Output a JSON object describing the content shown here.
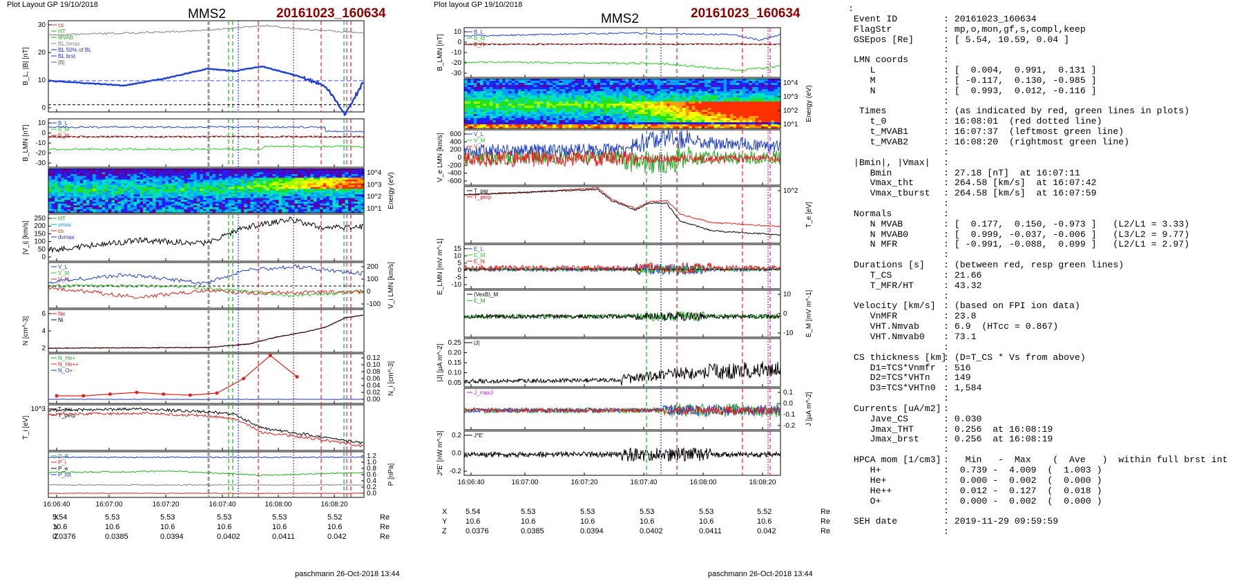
{
  "left_panel": {
    "plot_layout": "Plot Layout GP 19/10/2018",
    "spacecraft": "MMS2",
    "event": "20161023_160634",
    "footer": "paschmann 26-Oct-2018 13:44",
    "time_ticks": [
      "16:06:40",
      "16:07:00",
      "16:07:20",
      "16:07:40",
      "16:08:00",
      "16:08:20"
    ],
    "coords": {
      "row_labels": [
        "X",
        "Y",
        "Z"
      ],
      "unit": "Re",
      "x": [
        "5.54",
        "5.53",
        "5.53",
        "5.53",
        "5.53",
        "5.52"
      ],
      "y": [
        "10.6",
        "10.6",
        "10.6",
        "10.6",
        "10.6",
        "10.6"
      ],
      "z": [
        "0.0376",
        "0.0385",
        "0.0394",
        "0.0402",
        "0.0411",
        "0.042"
      ]
    },
    "panels": {
      "b": {
        "ylabel": "B_L, |B| [nT]",
        "ticks": [
          "30",
          "20",
          "10",
          "0"
        ],
        "legend": [
          "cs",
          "HT",
          "MVAB",
          "BL,hmax",
          "BL 50% of BL",
          "BL brst",
          "|B|"
        ]
      },
      "blmn": {
        "ylabel": "B_LMN [nT]",
        "ticks": [
          "10",
          "0",
          "-10",
          "-20",
          "-30"
        ],
        "legend": [
          "B_L",
          "B_M",
          "B_N"
        ]
      },
      "ispec": {
        "ylabel": "Energy (eV)",
        "ticks": [
          "10^4",
          "10^3",
          "10^2",
          "10^1"
        ]
      },
      "vi": {
        "ylabel": "|V_i| [km/s]",
        "ticks": [
          "250",
          "200",
          "150",
          "100",
          "50",
          "0"
        ],
        "legend": [
          "HT",
          "vmax",
          "cs",
          "dvmax"
        ]
      },
      "vlmn": {
        "ylabel": "V_i LMN [km/s]",
        "ticks": [
          "200",
          "100",
          "0",
          "-100"
        ],
        "legend": [
          "V_L",
          "V_M",
          "V_N"
        ]
      },
      "n": {
        "ylabel": "N [cm^-3]",
        "ticks": [
          "6",
          "4",
          "2"
        ],
        "legend": [
          "Ne",
          "Ni"
        ]
      },
      "ni": {
        "ylabel": "N_i [cm^-3]",
        "ticks": [
          "0.12",
          "0.10",
          "0.08",
          "0.06",
          "0.04",
          "0.02",
          "0.00"
        ],
        "legend": [
          "N_He+",
          "N_He++",
          "N_O+"
        ]
      },
      "ti": {
        "ylabel": "T_i [eV]",
        "ticks": [
          "10^3"
        ],
        "legend": [
          "T_par",
          "T_perp"
        ]
      },
      "p": {
        "ylabel": "P [nPa]",
        "ticks": [
          "1.2",
          "1.0",
          "0.8",
          "0.6",
          "0.4",
          "0.2",
          "0.0"
        ],
        "legend": [
          "P_B",
          "P_i",
          "P_e",
          "P_tot"
        ]
      }
    }
  },
  "middle_panel": {
    "plot_layout": "Plot layout GP 19/10/2018",
    "spacecraft": "MMS2",
    "event": "20161023_160634",
    "footer": "paschmann 26-Oct-2018 13:44",
    "time_ticks": [
      "16:06:40",
      "16:07:00",
      "16:07:20",
      "16:07:40",
      "16:08:00",
      "16:08:20"
    ],
    "coords": {
      "row_labels": [
        "X",
        "Y",
        "Z"
      ],
      "unit": "Re",
      "x": [
        "5.54",
        "5.53",
        "5.53",
        "5.53",
        "5.53",
        "5.52"
      ],
      "y": [
        "10.6",
        "10.6",
        "10.6",
        "10.6",
        "10.6",
        "10.6"
      ],
      "z": [
        "0.0376",
        "0.0385",
        "0.0394",
        "0.0402",
        "0.0411",
        "0.042"
      ]
    },
    "panels": {
      "blmn": {
        "ylabel": "B_LMN [nT]",
        "ticks": [
          "10",
          "0",
          "-10",
          "-20",
          "-30"
        ],
        "legend": [
          "B_L",
          "B_M",
          "B_N"
        ]
      },
      "espec": {
        "ylabel": "Energy (eV)",
        "ticks": [
          "10^4",
          "10^3",
          "10^2",
          "10^1"
        ]
      },
      "ve": {
        "ylabel": "V_e LMN [km/s]",
        "ticks": [
          "600",
          "400",
          "200",
          "0",
          "-200",
          "-400",
          "-600"
        ],
        "legend": [
          "V_L",
          "V_M",
          "V_N"
        ]
      },
      "te": {
        "ylabel": "T_e [eV]",
        "ticks": [
          "10^2"
        ],
        "legend": [
          "T_par",
          "T_perp"
        ]
      },
      "elmn": {
        "ylabel": "E_LMN [mV m^-1]",
        "ticks": [
          "15",
          "10",
          "5",
          "0",
          "-5",
          "-10"
        ],
        "legend": [
          "E_L",
          "E_M",
          "E_N"
        ]
      },
      "em": {
        "ylabel": "E_M [mV m^-1]",
        "ticks": [
          "10",
          "0",
          "-10"
        ],
        "legend": [
          "(VexB)_M",
          "E_M"
        ]
      },
      "jmag": {
        "ylabel": "|J| [µA m^-2]",
        "ticks": [
          "0.25",
          "0.20",
          "0.15",
          "0.10",
          "0.05"
        ],
        "legend": [
          "|J|"
        ]
      },
      "jlmn": {
        "ylabel": "J [µA m^-2]",
        "ticks": [
          "0.1",
          "0.0",
          "-0.1",
          "-0.2"
        ],
        "legend": [
          "J_maxJ"
        ]
      },
      "je": {
        "ylabel": "J*E' [nW m^-3]",
        "ticks": [
          "0.2",
          "0.0",
          "-0.2"
        ],
        "legend": [
          "J*E'"
        ]
      }
    }
  },
  "info": {
    "lines": [
      [
        "Event ID",
        ": 20161023_160634"
      ],
      [
        "FlagStr",
        ": mp,o,mon,gf,s,compl,keep"
      ],
      [
        "GSEpos [Re]",
        ": [ 5.54, 10.59, 0.04 ]"
      ],
      [
        "",
        ":"
      ],
      [
        "LMN coords",
        ":"
      ],
      [
        "   L",
        ": [  0.004,  0.991,  0.131 ]"
      ],
      [
        "   M",
        ": [ -0.117,  0.130, -0.985 ]"
      ],
      [
        "   N",
        ": [  0.993,  0.012, -0.116 ]"
      ],
      [
        "",
        ":"
      ],
      [
        " Times",
        ": (as indicated by red, green lines in plots)"
      ],
      [
        "   t_0",
        ": 16:08:01  (red dotted line)"
      ],
      [
        "   t_MVAB1",
        ": 16:07:37  (leftmost green line)"
      ],
      [
        "   t_MVAB2",
        ": 16:08:20  (rightmost green line)"
      ],
      [
        "",
        ":"
      ],
      [
        "|Bmin|, |Vmax|",
        ":"
      ],
      [
        "   Bmin",
        ": 27.18 [nT]  at 16:07:11"
      ],
      [
        "   Vmax_tht",
        ": 264.58 [km/s]  at 16:07:42"
      ],
      [
        "   Vmax_tburst",
        ": 264.58 [km/s]  at 16:07:59"
      ],
      [
        "",
        ":"
      ],
      [
        "Normals",
        ":"
      ],
      [
        "   N MVAB",
        ": [  0.177,  0.150, -0.973 ]   (L2/L1 = 3.33)"
      ],
      [
        "   N MVAB0",
        ": [  0.999, -0.037, -0.006 ]   (L3/L2 = 9.77)"
      ],
      [
        "   N MFR",
        ": [ -0.991, -0.088,  0.099 ]   (L2/L1 = 2.97)"
      ],
      [
        "",
        ":"
      ],
      [
        "Durations [s]",
        ": (between red, resp green lines)"
      ],
      [
        "   T_CS",
        ": 21.66"
      ],
      [
        "   T_MFR/HT",
        ": 43.32"
      ],
      [
        "",
        ":"
      ],
      [
        "Velocity [km/s]",
        ": (based on FPI ion data)"
      ],
      [
        "   VnMFR",
        ": 23.8"
      ],
      [
        "   VHT.Nmvab",
        ": 6.9  (HTcc = 0.867)"
      ],
      [
        "   VHT.Nmvab0",
        ": 73.1"
      ],
      [
        "",
        ":"
      ],
      [
        "CS thickness [km]",
        ": (D=T_CS * Vs from above)"
      ],
      [
        "   D1=TCS*Vnmfr",
        ": 516"
      ],
      [
        "   D2=TCS*VHTn",
        ": 149"
      ],
      [
        "   D3=TCS*VHTn0",
        ": 1,584"
      ],
      [
        "",
        ":"
      ],
      [
        "Currents [uA/m2]",
        ":"
      ],
      [
        "   Jave_CS",
        ": 0.030"
      ],
      [
        "   Jmax_THT",
        ": 0.256  at 16:08:19"
      ],
      [
        "   Jmax_brst",
        ": 0.256  at 16:08:19"
      ],
      [
        "",
        ":"
      ],
      [
        "HPCA mom [1/cm3]",
        ":   Min   -  Max    (  Ave   )  within full brst int"
      ],
      [
        "   H+",
        ":  0.739 -  4.009  (  1.003 )"
      ],
      [
        "   He+",
        ":  0.000 -  0.002  (  0.000 )"
      ],
      [
        "   He++",
        ":  0.012 -  0.127  (  0.018 )"
      ],
      [
        "   O+",
        ":  0.000 -  0.002  (  0.000 )"
      ],
      [
        "",
        ":"
      ],
      [
        "SEH date",
        ": 2019-11-29 09:59:59"
      ],
      [
        "",
        ":"
      ]
    ]
  },
  "chart_data": [
    {
      "type": "line",
      "title": "MMS2 20161023_160634",
      "panel": "B_L, |B|",
      "x_unit": "UT",
      "x": [
        "16:06:40",
        "16:06:50",
        "16:07:00",
        "16:07:10",
        "16:07:20",
        "16:07:30",
        "16:07:40",
        "16:07:50",
        "16:08:00",
        "16:08:10",
        "16:08:20"
      ],
      "series": [
        {
          "name": "|B|",
          "values": [
            28,
            29,
            30,
            31,
            31,
            30,
            32,
            33,
            31,
            29,
            28
          ]
        },
        {
          "name": "B_L",
          "values": [
            10,
            9,
            8,
            9,
            12,
            15,
            14,
            16,
            13,
            9,
            -4
          ]
        }
      ],
      "ylim": [
        -3,
        35
      ]
    },
    {
      "type": "line",
      "panel": "N",
      "x": [
        "16:06:40",
        "16:07:00",
        "16:07:20",
        "16:07:40",
        "16:07:50",
        "16:08:00",
        "16:08:10",
        "16:08:20"
      ],
      "series": [
        {
          "name": "Ne",
          "values": [
            0.3,
            0.3,
            0.4,
            0.5,
            1.2,
            2.5,
            3.5,
            5.8
          ]
        },
        {
          "name": "Ni",
          "values": [
            0.3,
            0.3,
            0.4,
            0.5,
            1.2,
            2.5,
            3.4,
            5.7
          ]
        }
      ],
      "ylim": [
        0,
        6.5
      ]
    },
    {
      "type": "line",
      "panel": "N_i",
      "x": [
        "16:06:40",
        "16:06:50",
        "16:07:00",
        "16:07:10",
        "16:07:20",
        "16:07:30",
        "16:07:40",
        "16:07:50",
        "16:08:00",
        "16:08:10"
      ],
      "series": [
        {
          "name": "N He++",
          "values": [
            0.01,
            0.01,
            0.015,
            0.02,
            0.015,
            0.012,
            0.018,
            0.06,
            0.127,
            0.065
          ]
        },
        {
          "name": "N He+",
          "values": [
            0,
            0,
            0,
            0,
            0,
            0,
            0,
            0,
            0,
            0
          ]
        },
        {
          "name": "N O+",
          "values": [
            0,
            0,
            0,
            0,
            0,
            0,
            0,
            0,
            0,
            0
          ]
        }
      ],
      "ylim": [
        0,
        0.12
      ]
    },
    {
      "type": "line",
      "panel": "|J|",
      "x": [
        "16:06:40",
        "16:07:00",
        "16:07:20",
        "16:07:40",
        "16:07:50",
        "16:08:00",
        "16:08:10",
        "16:08:19"
      ],
      "series": [
        {
          "name": "|J|",
          "values": [
            0.02,
            0.02,
            0.02,
            0.04,
            0.08,
            0.1,
            0.12,
            0.256
          ]
        }
      ],
      "ylim": [
        0,
        0.25
      ]
    }
  ],
  "colors": {
    "event_red": "#8b0000",
    "bl": "#1f3fd0",
    "bm": "#28c828",
    "bn": "#e02020",
    "b_total": "#808080",
    "marker_green": "#22aa22",
    "marker_red": "#e02020",
    "marker_blue": "#2030e0",
    "marker_magenta": "#cc22cc"
  }
}
